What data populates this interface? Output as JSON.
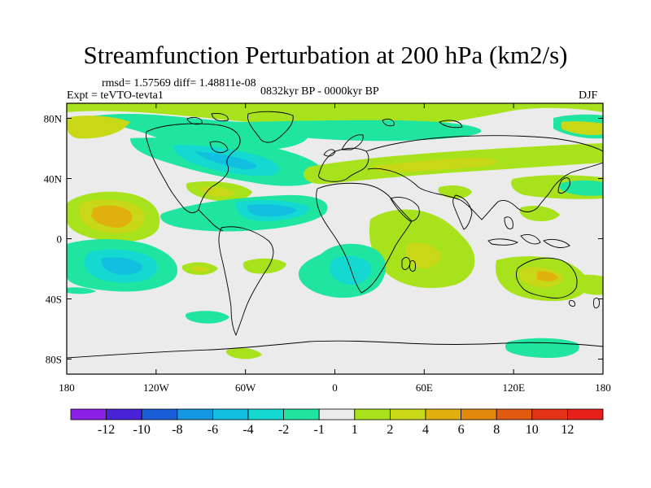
{
  "title": "Streamfunction Perturbation at 200 hPa (km2/s)",
  "stats": "rmsd= 1.57569 diff= 1.48811e-08",
  "experiment": "Expt = teVTO-tevta1",
  "period": "0832kyr BP - 0000kyr BP",
  "season": "DJF",
  "lat_ticks": [
    "80N",
    "40N",
    "0",
    "40S",
    "80S"
  ],
  "lon_ticks": [
    "180",
    "120W",
    "60W",
    "0",
    "60E",
    "120E",
    "180"
  ],
  "colorbar": {
    "labels": [
      "-12",
      "-10",
      "-8",
      "-6",
      "-4",
      "-2",
      "-1",
      "1",
      "2",
      "4",
      "6",
      "8",
      "10",
      "12"
    ],
    "colors": [
      "#8a1fe6",
      "#4a22d8",
      "#1b5fd8",
      "#1496e0",
      "#12bfe0",
      "#13d9d0",
      "#20e5a0",
      "#ebebeb",
      "#a8e21c",
      "#c9d816",
      "#e0b00e",
      "#e2880c",
      "#e05a10",
      "#e23316",
      "#e8201c"
    ]
  },
  "colors": {
    "background": "#ebebeb",
    "coast": "#000000"
  }
}
